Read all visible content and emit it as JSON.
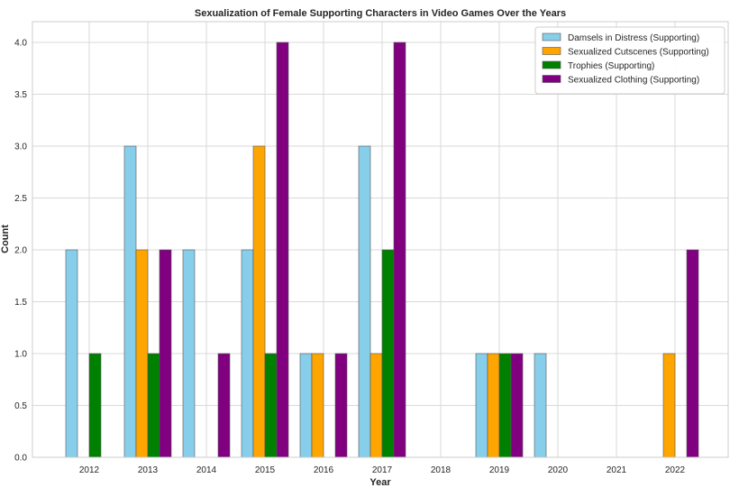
{
  "chart_data": {
    "type": "bar",
    "title": "Sexualization of Female Supporting Characters in Video Games Over the Years",
    "xlabel": "Year",
    "ylabel": "Count",
    "categories": [
      "2012",
      "2013",
      "2014",
      "2015",
      "2016",
      "2017",
      "2018",
      "2019",
      "2020",
      "2021",
      "2022"
    ],
    "ylim": [
      0,
      4.2
    ],
    "yticks": [
      "0.0",
      "0.5",
      "1.0",
      "1.5",
      "2.0",
      "2.5",
      "3.0",
      "3.5",
      "4.0"
    ],
    "grid": true,
    "legend_position": "top-right",
    "series": [
      {
        "name": "Damsels in Distress (Supporting)",
        "color": "#87ceeb",
        "values": [
          2,
          3,
          2,
          2,
          1,
          3,
          0,
          1,
          1,
          0,
          0
        ]
      },
      {
        "name": "Sexualized Cutscenes (Supporting)",
        "color": "#ffa500",
        "values": [
          0,
          2,
          0,
          3,
          1,
          1,
          0,
          1,
          0,
          0,
          1
        ]
      },
      {
        "name": "Trophies (Supporting)",
        "color": "#008000",
        "values": [
          1,
          1,
          0,
          1,
          0,
          2,
          0,
          1,
          0,
          0,
          0
        ]
      },
      {
        "name": "Sexualized Clothing (Supporting)",
        "color": "#800080",
        "values": [
          0,
          2,
          1,
          4,
          1,
          4,
          0,
          1,
          0,
          0,
          2
        ]
      }
    ]
  }
}
